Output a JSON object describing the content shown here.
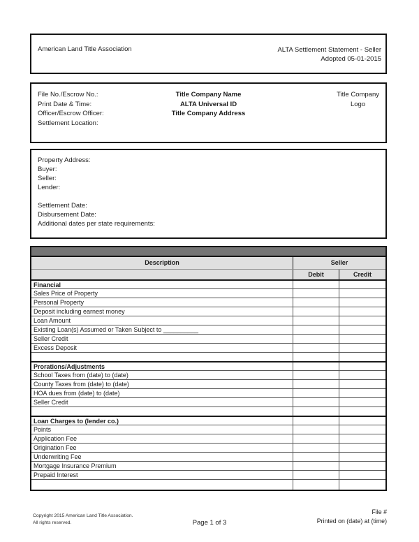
{
  "masthead": {
    "org_name": "American Land Title Association",
    "doc_title": "ALTA Settlement Statement - Seller",
    "adopted": "Adopted 05-01-2015"
  },
  "file_info": {
    "labels": [
      "File No./Escrow No.:",
      "Print Date & Time:",
      "Officer/Escrow Officer:",
      "Settlement Location:"
    ],
    "company": [
      "Title Company Name",
      "ALTA Universal ID",
      "Title Company Address"
    ],
    "logo": [
      "Title Company",
      "Logo"
    ]
  },
  "transaction_info": {
    "lines": [
      "Property Address:",
      "Buyer:",
      "Seller:",
      "Lender:",
      "",
      "Settlement Date:",
      "Disbursement Date:",
      "Additional dates per state requirements:"
    ]
  },
  "table": {
    "columns": {
      "description": "Description",
      "group": "Seller",
      "debit": "Debit",
      "credit": "Credit"
    },
    "colors": {
      "top_bar": "#757575",
      "header_bg": "#e0e0e0",
      "border": "#151515"
    },
    "rows": [
      {
        "label": "Financial",
        "bold": true,
        "debit": "",
        "credit": ""
      },
      {
        "label": "Sales Price of Property",
        "bold": false,
        "debit": "",
        "credit": ""
      },
      {
        "label": "Personal Property",
        "bold": false,
        "debit": "",
        "credit": ""
      },
      {
        "label": "Deposit including earnest money",
        "bold": false,
        "debit": "",
        "credit": ""
      },
      {
        "label": "Loan Amount",
        "bold": false,
        "debit": "",
        "credit": ""
      },
      {
        "label": "Existing Loan(s) Assumed or Taken Subject to __________",
        "bold": false,
        "debit": "",
        "credit": ""
      },
      {
        "label": "Seller Credit",
        "bold": false,
        "debit": "",
        "credit": ""
      },
      {
        "label": "Excess Deposit",
        "bold": false,
        "debit": "",
        "credit": ""
      },
      {
        "label": "",
        "bold": false,
        "debit": "",
        "credit": ""
      },
      {
        "label": "Prorations/Adjustments",
        "bold": true,
        "debit": "",
        "credit": ""
      },
      {
        "label": "School Taxes from (date) to (date)",
        "bold": false,
        "debit": "",
        "credit": ""
      },
      {
        "label": "County Taxes from (date) to (date)",
        "bold": false,
        "debit": "",
        "credit": ""
      },
      {
        "label": "HOA dues from (date) to (date)",
        "bold": false,
        "debit": "",
        "credit": ""
      },
      {
        "label": "Seller Credit",
        "bold": false,
        "debit": "",
        "credit": ""
      },
      {
        "label": "",
        "bold": false,
        "debit": "",
        "credit": ""
      },
      {
        "label": "Loan Charges to (lender co.)",
        "bold": true,
        "debit": "",
        "credit": ""
      },
      {
        "label": "Points",
        "bold": false,
        "debit": "",
        "credit": ""
      },
      {
        "label": "Application Fee",
        "bold": false,
        "debit": "",
        "credit": ""
      },
      {
        "label": "Origination Fee",
        "bold": false,
        "debit": "",
        "credit": ""
      },
      {
        "label": "Underwriting Fee",
        "bold": false,
        "debit": "",
        "credit": ""
      },
      {
        "label": "Mortgage Insurance Premium",
        "bold": false,
        "debit": "",
        "credit": ""
      },
      {
        "label": "Prepaid Interest",
        "bold": false,
        "debit": "",
        "credit": ""
      },
      {
        "label": "",
        "bold": false,
        "debit": "",
        "credit": ""
      }
    ]
  },
  "footer": {
    "copyright_line1": "Copyright 2015 American Land Title Association.",
    "copyright_line2": "All rights reserved.",
    "page_number": "Page 1 of 3",
    "file_ref": "File #",
    "printed": "Printed on (date) at (time)"
  }
}
